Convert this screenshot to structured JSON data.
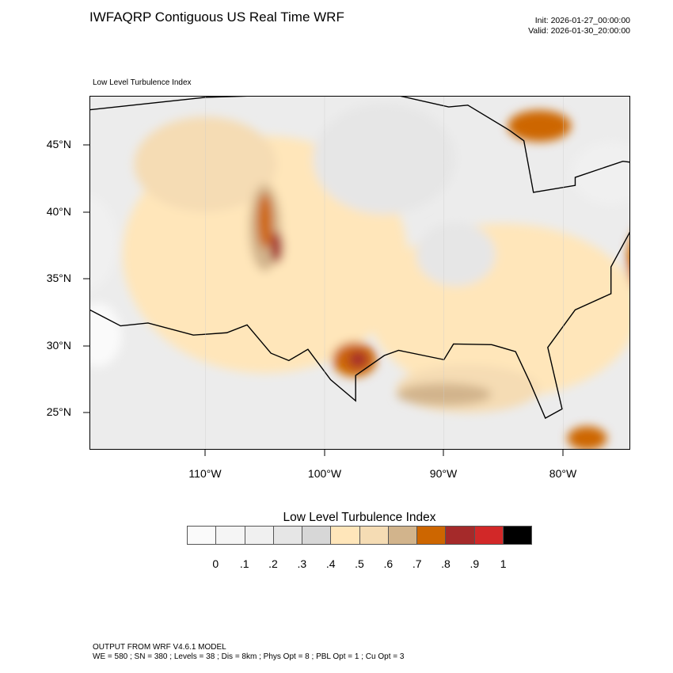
{
  "header": {
    "title": "IWFAQRP Contiguous US Real Time WRF",
    "init": "Init: 2026-01-27_00:00:00",
    "valid": "Valid: 2026-01-30_20:00:00"
  },
  "map": {
    "subtitle": "Low Level Turbulence Index",
    "lat_labels": [
      "45°N",
      "40°N",
      "35°N",
      "30°N",
      "25°N"
    ],
    "lon_labels": [
      "110°W",
      "100°W",
      "90°W",
      "80°W"
    ]
  },
  "colorbar": {
    "title": "Low Level Turbulence Index",
    "labels": [
      "0",
      ".1",
      ".2",
      ".3",
      ".4",
      ".5",
      ".6",
      ".7",
      ".8",
      ".9",
      "1"
    ],
    "colors": [
      "#fafafa",
      "#f5f5f5",
      "#f0f0f0",
      "#e6e6e6",
      "#d7d7d7",
      "#ffe6ba",
      "#f5dcb4",
      "#d2b48c",
      "#cd6600",
      "#a52a2a",
      "#d22828",
      "#000000"
    ]
  },
  "footer": {
    "line1": "OUTPUT FROM WRF V4.6.1 MODEL",
    "line2": "WE = 580 ; SN = 380 ; Levels = 38 ; Dis = 8km ; Phys Opt = 8 ; PBL Opt = 1 ; Cu Opt = 3"
  }
}
